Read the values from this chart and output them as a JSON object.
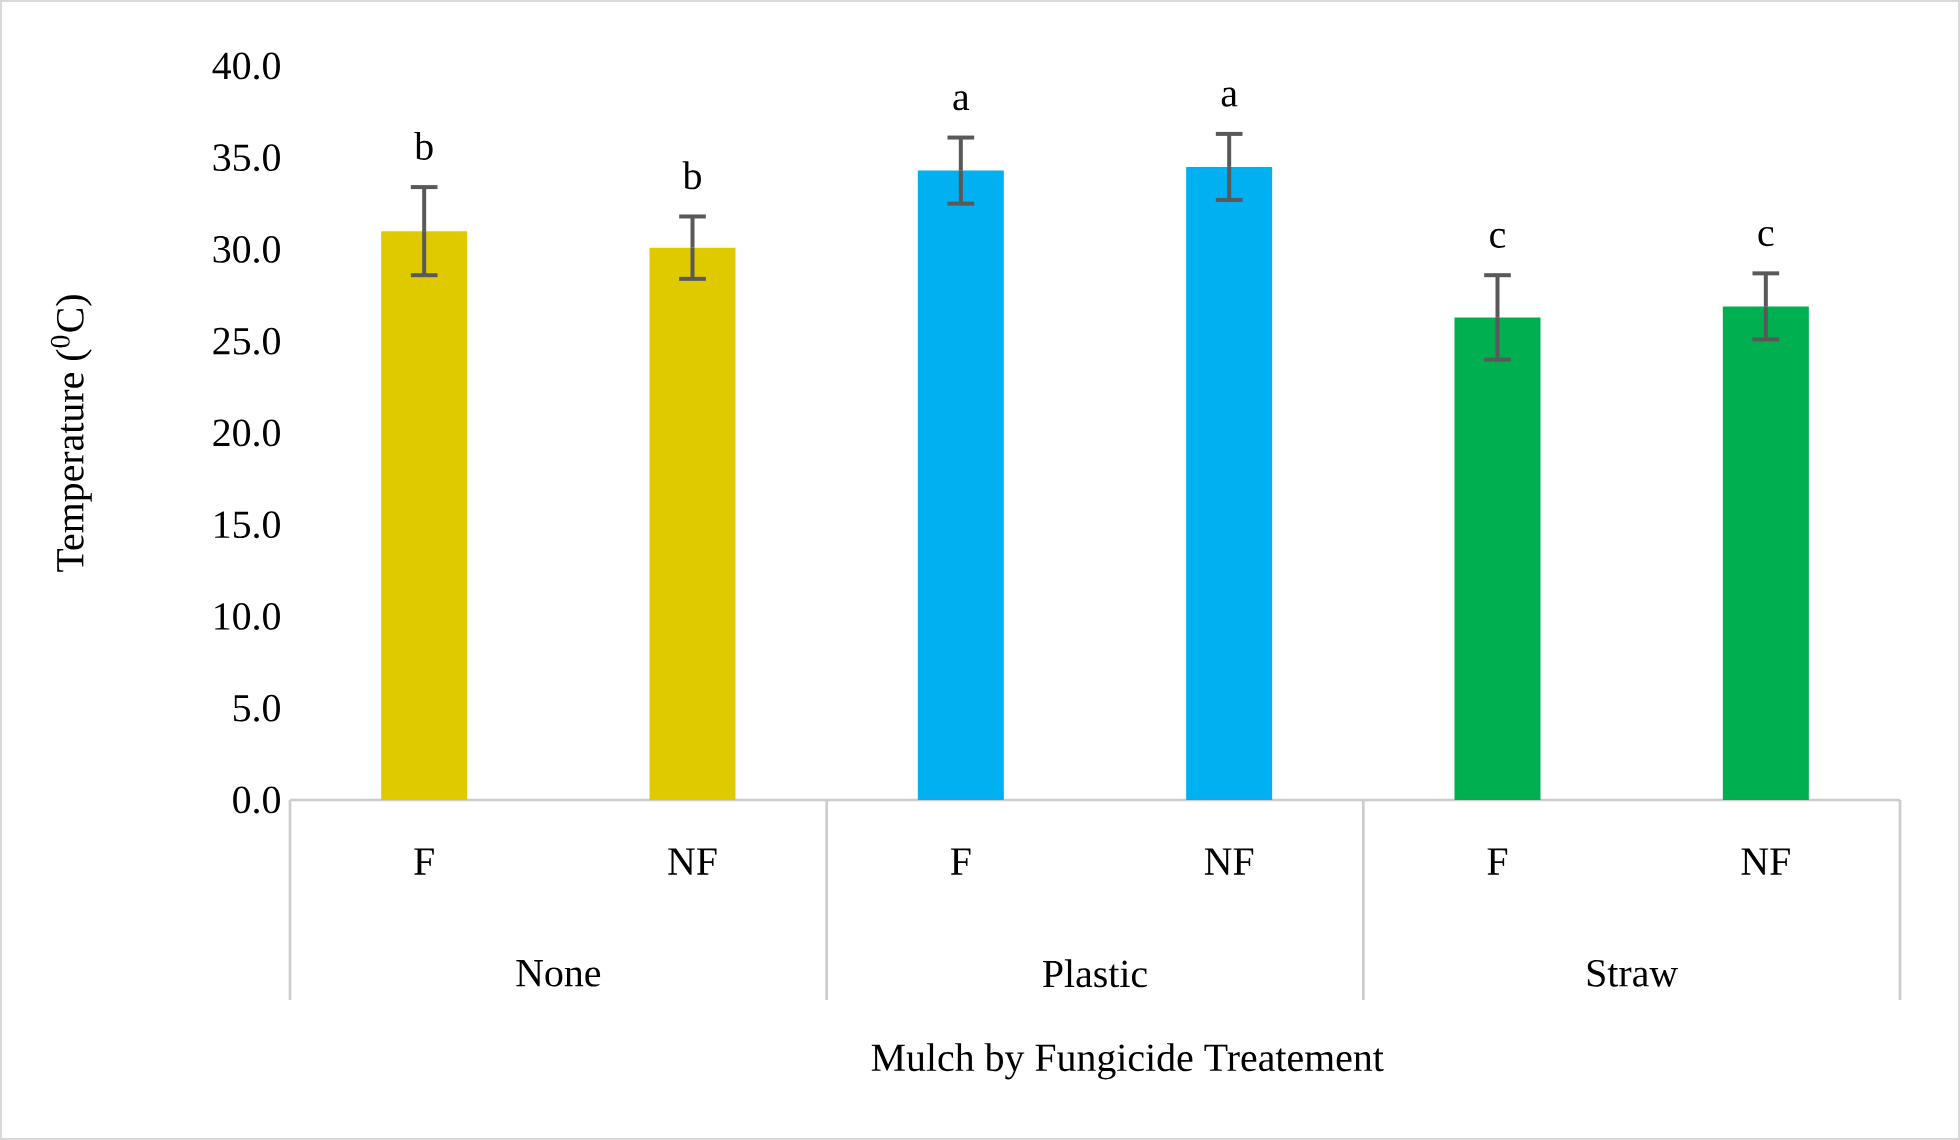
{
  "chart_data": {
    "type": "bar",
    "xlabel": "Mulch by Fungicide Treatement",
    "ylabel": "Temperature ($^{0}$C)",
    "categories": [
      "F",
      "NF",
      "F",
      "NF",
      "F",
      "NF"
    ],
    "values": [
      31.0,
      30.1,
      34.3,
      34.5,
      26.3,
      26.9
    ],
    "errors": [
      2.4,
      1.7,
      1.8,
      1.8,
      2.3,
      1.8
    ],
    "colors": [
      "#dfca00",
      "#dfca00",
      "#00b0f0",
      "#00b0f0",
      "#00b050",
      "#00b050"
    ],
    "ylim": [
      0,
      40
    ],
    "yticks": [
      {
        "value": 0,
        "label": "0.0"
      },
      {
        "value": 5,
        "label": "5.0"
      },
      {
        "value": 10,
        "label": "10.0"
      },
      {
        "value": 15,
        "label": "15.0"
      },
      {
        "value": 20,
        "label": "20.0"
      },
      {
        "value": 25,
        "label": "25.0"
      },
      {
        "value": 30,
        "label": "30.0"
      },
      {
        "value": 35,
        "label": "35.0"
      },
      {
        "value": 40,
        "label": "40.0"
      }
    ],
    "annotations": [
      "b",
      "b",
      "a",
      "a",
      "c",
      "c",
      "None",
      "Plastic",
      "Straw"
    ],
    "grid": false
  }
}
